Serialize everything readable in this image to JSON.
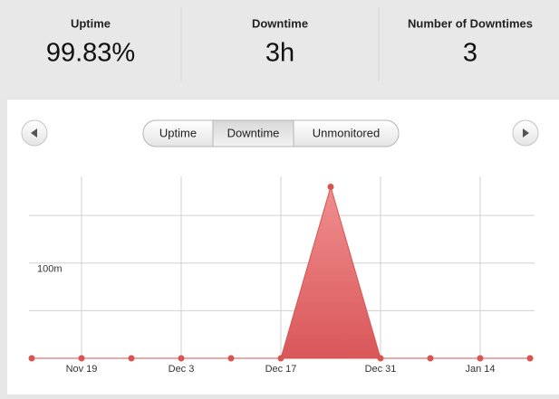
{
  "stats": [
    {
      "label": "Uptime",
      "value": "99.83%"
    },
    {
      "label": "Downtime",
      "value": "3h"
    },
    {
      "label": "Number of Downtimes",
      "value": "3"
    }
  ],
  "tabs": [
    "Uptime",
    "Downtime",
    "Unmonitored"
  ],
  "active_tab": 1,
  "chart_data": {
    "type": "area",
    "categories": [
      null,
      "Nov 19",
      null,
      "Dec 3",
      null,
      "Dec 17",
      null,
      "Dec 31",
      null,
      "Jan 14",
      null
    ],
    "values": [
      0,
      0,
      0,
      0,
      0,
      0,
      180,
      0,
      0,
      0,
      0
    ],
    "color": "#d9534f",
    "ylim": [
      0,
      190
    ],
    "yticks": [
      {
        "value": 100,
        "label": "100m"
      }
    ],
    "ygrid": [
      0,
      50,
      100,
      150
    ],
    "grid": true
  }
}
